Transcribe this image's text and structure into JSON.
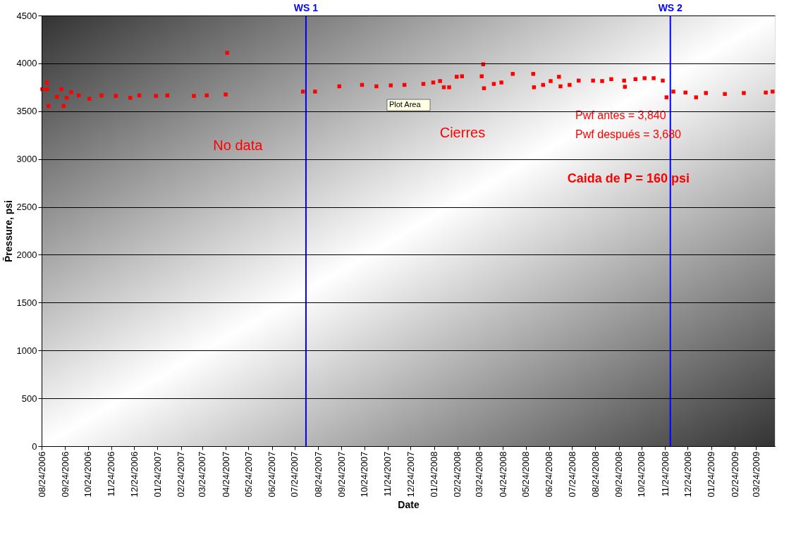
{
  "chart_data": {
    "type": "scatter",
    "xlabel": "Date",
    "ylabel": "P̄ressure, psi",
    "x": [
      "2006-08-25",
      "2006-08-31",
      "2006-08-31",
      "2006-09-02",
      "2006-09-13",
      "2006-09-19",
      "2006-09-22",
      "2006-09-26",
      "2006-10-02",
      "2006-10-12",
      "2006-10-26",
      "2006-11-11",
      "2006-11-30",
      "2006-12-19",
      "2006-12-31",
      "2007-01-22",
      "2007-02-06",
      "2007-03-13",
      "2007-03-30",
      "2007-04-24",
      "2007-04-26",
      "2007-08-04",
      "2007-08-20",
      "2007-09-21",
      "2007-10-21",
      "2007-11-09",
      "2007-11-28",
      "2007-12-16",
      "2008-01-10",
      "2008-01-23",
      "2008-02-01",
      "2008-02-06",
      "2008-02-13",
      "2008-02-23",
      "2008-03-01",
      "2008-03-27",
      "2008-03-29",
      "2008-03-30",
      "2008-04-12",
      "2008-04-22",
      "2008-05-07",
      "2008-06-03",
      "2008-06-04",
      "2008-06-16",
      "2008-06-26",
      "2008-07-07",
      "2008-07-09",
      "2008-07-21",
      "2008-08-02",
      "2008-08-21",
      "2008-09-02",
      "2008-09-14",
      "2008-10-01",
      "2008-10-02",
      "2008-10-16",
      "2008-10-28",
      "2008-11-09",
      "2008-11-21",
      "2008-11-26",
      "2008-12-05",
      "2008-12-21",
      "2009-01-04",
      "2009-01-17",
      "2009-02-11",
      "2009-03-08",
      "2009-04-06",
      "2009-04-15"
    ],
    "series": [
      {
        "color": "#ff0000",
        "values": [
          3730,
          3800,
          3730,
          3555,
          3650,
          3730,
          3555,
          3640,
          3700,
          3665,
          3630,
          3665,
          3660,
          3640,
          3665,
          3660,
          3665,
          3660,
          3665,
          3675,
          4110,
          3705,
          3705,
          3760,
          3775,
          3760,
          3770,
          3775,
          3785,
          3800,
          3815,
          3750,
          3750,
          3860,
          3865,
          3865,
          3990,
          3740,
          3785,
          3800,
          3890,
          3890,
          3750,
          3775,
          3815,
          3860,
          3760,
          3775,
          3820,
          3820,
          3815,
          3835,
          3820,
          3755,
          3835,
          3845,
          3845,
          3820,
          3645,
          3705,
          3695,
          3645,
          3690,
          3680,
          3690,
          3695,
          3705
        ]
      }
    ],
    "marker": "square",
    "grid": "y",
    "xlim": [
      "2006-08-24",
      "2009-04-18"
    ],
    "xticks": [
      {
        "value": "2006-08-24",
        "label": "08/24/2006"
      },
      {
        "value": "2006-09-24",
        "label": "09/24/2006"
      },
      {
        "value": "2006-10-24",
        "label": "10/24/2006"
      },
      {
        "value": "2006-11-24",
        "label": "11/24/2006"
      },
      {
        "value": "2006-12-24",
        "label": "12/24/2006"
      },
      {
        "value": "2007-01-24",
        "label": "01/24/2007"
      },
      {
        "value": "2007-02-24",
        "label": "02/24/2007"
      },
      {
        "value": "2007-03-24",
        "label": "03/24/2007"
      },
      {
        "value": "2007-04-24",
        "label": "04/24/2007"
      },
      {
        "value": "2007-05-24",
        "label": "05/24/2007"
      },
      {
        "value": "2007-06-24",
        "label": "06/24/2007"
      },
      {
        "value": "2007-07-24",
        "label": "07/24/2007"
      },
      {
        "value": "2007-08-24",
        "label": "08/24/2007"
      },
      {
        "value": "2007-09-24",
        "label": "09/24/2007"
      },
      {
        "value": "2007-10-24",
        "label": "10/24/2007"
      },
      {
        "value": "2007-11-24",
        "label": "11/24/2007"
      },
      {
        "value": "2007-12-24",
        "label": "12/24/2007"
      },
      {
        "value": "2008-01-24",
        "label": "01/24/2008"
      },
      {
        "value": "2008-02-24",
        "label": "02/24/2008"
      },
      {
        "value": "2008-03-24",
        "label": "03/24/2008"
      },
      {
        "value": "2008-04-24",
        "label": "04/24/2008"
      },
      {
        "value": "2008-05-24",
        "label": "05/24/2008"
      },
      {
        "value": "2008-06-24",
        "label": "06/24/2008"
      },
      {
        "value": "2008-07-24",
        "label": "07/24/2008"
      },
      {
        "value": "2008-08-24",
        "label": "08/24/2008"
      },
      {
        "value": "2008-09-24",
        "label": "09/24/2008"
      },
      {
        "value": "2008-10-24",
        "label": "10/24/2008"
      },
      {
        "value": "2008-11-24",
        "label": "11/24/2008"
      },
      {
        "value": "2008-12-24",
        "label": "12/24/2008"
      },
      {
        "value": "2009-01-24",
        "label": "01/24/2009"
      },
      {
        "value": "2009-02-24",
        "label": "02/24/2009"
      },
      {
        "value": "2009-03-24",
        "label": "03/24/2009"
      }
    ],
    "ylim": [
      0,
      4500
    ],
    "yticks": [
      0,
      500,
      1000,
      1500,
      2000,
      2500,
      3000,
      3500,
      4000,
      4500
    ],
    "ref_lines": [
      {
        "axis": "x",
        "value": "2007-08-08",
        "label": "WS 1",
        "color": "#0000ff"
      },
      {
        "axis": "x",
        "value": "2008-12-01",
        "label": "WS 2",
        "color": "#0000ff"
      }
    ],
    "annotations": [
      "No data",
      "Cierres",
      "Pwf antes      = 3,840",
      "Pwf después = 3,680",
      "Caida de P = 160 psi",
      "Plot Area"
    ]
  }
}
